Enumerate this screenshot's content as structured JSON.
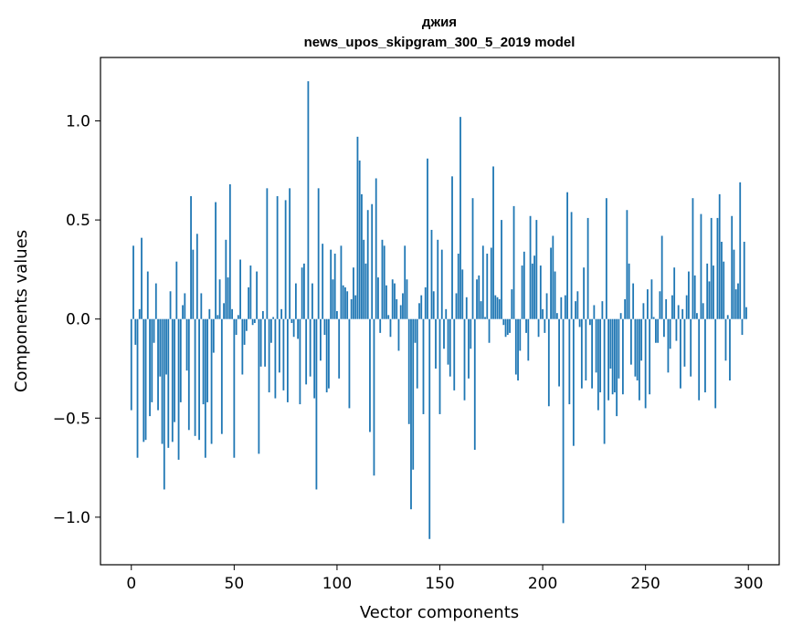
{
  "chart_data": {
    "type": "bar",
    "title": "джия",
    "subtitle": "news_upos_skipgram_300_5_2019 model",
    "xlabel": "Vector components",
    "ylabel": "Components values",
    "xlim": [
      -15,
      315
    ],
    "ylim": [
      -1.24,
      1.32
    ],
    "x_ticks": [
      0,
      50,
      100,
      150,
      200,
      250,
      300
    ],
    "y_ticks": [
      -1.0,
      -0.5,
      0.0,
      0.5,
      1.0
    ],
    "y_tick_labels": [
      "−1.0",
      "−0.5",
      "0.0",
      "0.5",
      "1.0"
    ],
    "bar_color": "#1f77b4",
    "x": "0..299 (component index)",
    "values": [
      -0.46,
      0.37,
      -0.13,
      -0.7,
      0.05,
      0.41,
      -0.62,
      -0.61,
      0.24,
      -0.49,
      -0.42,
      -0.12,
      0.18,
      -0.46,
      -0.29,
      -0.63,
      -0.86,
      -0.28,
      -0.65,
      0.14,
      -0.62,
      -0.52,
      0.29,
      -0.71,
      -0.42,
      0.07,
      0.13,
      -0.26,
      -0.56,
      0.62,
      0.35,
      -0.59,
      0.43,
      -0.61,
      0.13,
      -0.43,
      -0.7,
      -0.42,
      0.05,
      -0.63,
      -0.17,
      0.59,
      0.02,
      0.2,
      -0.58,
      0.08,
      0.4,
      0.21,
      0.68,
      0.05,
      -0.7,
      -0.08,
      0.02,
      0.3,
      -0.28,
      -0.13,
      -0.06,
      0.16,
      0.27,
      -0.03,
      -0.02,
      0.24,
      -0.68,
      -0.24,
      0.04,
      -0.24,
      0.66,
      -0.37,
      -0.12,
      0.01,
      -0.4,
      0.62,
      -0.27,
      0.05,
      -0.36,
      0.6,
      -0.42,
      0.66,
      -0.02,
      -0.09,
      0.18,
      -0.1,
      -0.43,
      0.26,
      0.28,
      -0.33,
      1.2,
      -0.29,
      0.18,
      -0.4,
      -0.86,
      0.66,
      -0.21,
      0.38,
      -0.08,
      -0.37,
      -0.35,
      0.35,
      0.2,
      0.33,
      0.04,
      -0.3,
      0.37,
      0.17,
      0.16,
      0.14,
      -0.45,
      0.1,
      0.26,
      0.12,
      0.92,
      0.8,
      0.63,
      0.4,
      0.28,
      0.55,
      -0.57,
      0.58,
      -0.79,
      0.71,
      0.21,
      -0.07,
      0.4,
      0.37,
      0.17,
      0.02,
      -0.09,
      0.2,
      0.18,
      0.1,
      -0.16,
      0.07,
      0.13,
      0.37,
      0.2,
      -0.53,
      -0.96,
      -0.76,
      -0.12,
      -0.35,
      0.08,
      0.12,
      -0.48,
      0.16,
      0.81,
      -1.11,
      0.45,
      0.14,
      -0.25,
      0.4,
      -0.48,
      0.35,
      -0.15,
      0.05,
      -0.23,
      -0.29,
      0.72,
      -0.36,
      0.13,
      0.33,
      1.02,
      0.25,
      -0.41,
      0.11,
      -0.3,
      -0.15,
      0.61,
      -0.66,
      0.2,
      0.22,
      0.09,
      0.37,
      0.01,
      0.33,
      -0.12,
      0.36,
      0.77,
      0.12,
      0.11,
      0.1,
      0.5,
      -0.03,
      -0.09,
      -0.08,
      -0.07,
      0.15,
      0.57,
      -0.28,
      -0.31,
      -0.16,
      0.27,
      0.34,
      -0.07,
      -0.21,
      0.52,
      0.28,
      0.32,
      0.5,
      -0.09,
      0.27,
      0.05,
      -0.07,
      0.13,
      -0.44,
      0.36,
      0.42,
      0.24,
      0.03,
      -0.34,
      0.11,
      -1.03,
      0.12,
      0.64,
      -0.43,
      0.54,
      -0.64,
      0.09,
      0.14,
      -0.04,
      -0.35,
      0.26,
      -0.31,
      0.51,
      -0.03,
      -0.35,
      0.07,
      -0.27,
      -0.46,
      -0.37,
      0.09,
      -0.63,
      0.61,
      -0.41,
      -0.25,
      -0.38,
      -0.37,
      -0.49,
      -0.3,
      0.03,
      -0.38,
      0.1,
      0.55,
      0.28,
      -0.23,
      0.18,
      -0.29,
      -0.31,
      -0.41,
      -0.21,
      0.08,
      -0.45,
      0.15,
      -0.38,
      0.2,
      0.01,
      -0.12,
      -0.12,
      0.14,
      0.42,
      -0.09,
      0.1,
      -0.27,
      -0.15,
      0.12,
      0.26,
      -0.11,
      0.07,
      -0.35,
      0.05,
      -0.24,
      0.12,
      0.24,
      -0.29,
      0.61,
      0.22,
      0.03,
      -0.41,
      0.53,
      0.08,
      -0.37,
      0.28,
      0.19,
      0.51,
      0.27,
      -0.45,
      0.51,
      0.63,
      0.39,
      0.29,
      -0.21,
      0.02,
      -0.31,
      0.52,
      0.35,
      0.15,
      0.18,
      0.69,
      -0.08,
      0.39,
      0.06
    ]
  }
}
